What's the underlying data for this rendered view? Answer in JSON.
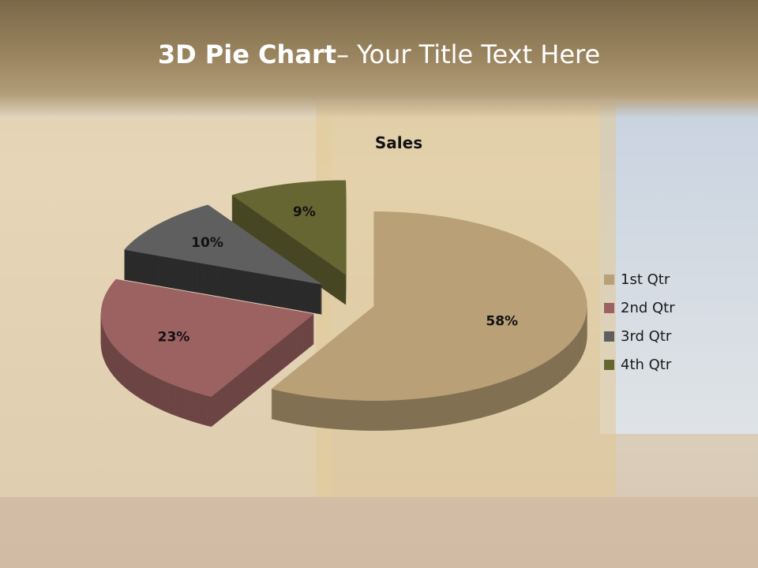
{
  "slide": {
    "title_bold": "3D Pie Chart",
    "title_rest": "– Your Title Text Here"
  },
  "chart_data": {
    "type": "pie",
    "style": "3d-exploded",
    "title": "Sales",
    "categories": [
      "1st Qtr",
      "2nd Qtr",
      "3rd Qtr",
      "4th Qtr"
    ],
    "values": [
      58,
      23,
      10,
      9
    ],
    "labels": [
      "58%",
      "23%",
      "10%",
      "9%"
    ],
    "colors": [
      "#b9a077",
      "#9c6262",
      "#5f5f5f",
      "#666633"
    ],
    "legend_position": "right"
  }
}
